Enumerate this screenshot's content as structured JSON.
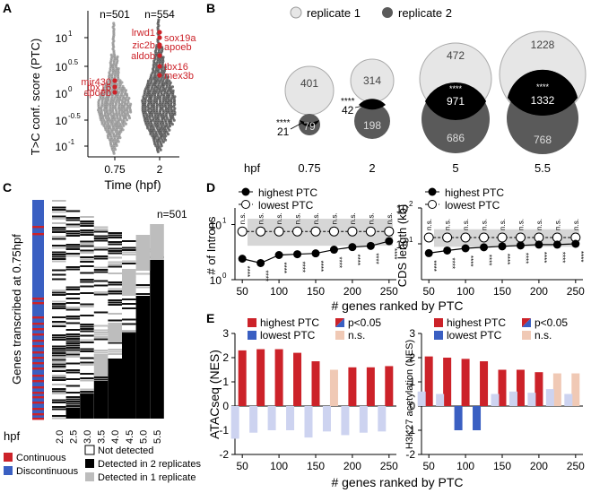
{
  "panels": {
    "A": {
      "letter": "A",
      "ylabel": "T>C conf. score (PTC)",
      "xlabel": "Time (hpf)",
      "yticks": [
        "10¹",
        "10°⋅⁵",
        "10⁰",
        "10⁻⁰⋅⁵",
        "10⁻¹"
      ],
      "ytick_labels": [
        "10",
        "10",
        "10",
        "10",
        "10"
      ],
      "ytick_exps": [
        "1",
        "0.5",
        "0",
        "-0.5",
        "-1"
      ],
      "xticks": [
        "0.75",
        "2"
      ],
      "counts": [
        "n=501",
        "n=554"
      ],
      "genes_left": [
        "mir430",
        "tbx16",
        "apoeb"
      ],
      "genes_right_a": [
        "lrwd1",
        "zic2b",
        "aldob"
      ],
      "genes_right_b": [
        "sox19a",
        "apoeb",
        "tbx16",
        "mex3b"
      ]
    },
    "B": {
      "letter": "B",
      "legend": [
        "replicate 1",
        "replicate 2"
      ],
      "row_label": "hpf",
      "timepoints": [
        "0.75",
        "2",
        "5",
        "5.5"
      ],
      "rep1_only": [
        "401",
        "314",
        "472",
        "1228"
      ],
      "overlap": [
        "21",
        "42",
        "971",
        "1332"
      ],
      "rep2_only": [
        "79",
        "198",
        "686",
        "768"
      ],
      "signif": "****"
    },
    "C": {
      "letter": "C",
      "ylabel": "Genes transcribed at 0.75hpf",
      "count": "n=501",
      "row_label": "hpf",
      "columns": [
        "2.0",
        "2.5",
        "3.0",
        "3.5",
        "4.0",
        "4.5",
        "5.0",
        "5.5"
      ],
      "legend_left": [
        "Continuous",
        "Discontinuous"
      ],
      "legend_right": [
        "Not detected",
        "Detected in 2 replicates",
        "Detected in 1 replicate"
      ]
    },
    "D": {
      "letter": "D",
      "legend": [
        "highest PTC",
        "lowest PTC"
      ],
      "ns": "n.s.",
      "stars": "****",
      "xlabel": "# genes ranked by PTC",
      "xticks": [
        "50",
        "100",
        "150",
        "200",
        "250"
      ],
      "left": {
        "ylabel": "# of Introns",
        "yticks": [
          "10",
          "10"
        ],
        "yexps": [
          "1",
          "0"
        ]
      },
      "right": {
        "ylabel": "CDS length (kb)",
        "yticks": [
          "10",
          "10"
        ],
        "yexps": [
          "2",
          "1"
        ]
      }
    },
    "E": {
      "letter": "E",
      "legend": [
        "highest PTC",
        "lowest PTC",
        "p<0.05",
        "n.s."
      ],
      "xlabel": "# genes ranked by PTC",
      "xticks": [
        "50",
        "100",
        "150",
        "200",
        "250"
      ],
      "yticks": [
        "3",
        "2",
        "1",
        "0",
        "-1",
        "-2"
      ],
      "left": {
        "ylabel": "ATACseq (NES)"
      },
      "right": {
        "ylabel": "H3K27 acetylation (NES)"
      }
    }
  },
  "colors": {
    "red": "#cc2229",
    "blue": "#3a5fc2",
    "pale_red": "#f0c9b5",
    "pale_blue": "#cdd3f0",
    "grey": "#c9c9c9",
    "dark": "#5a5a5a",
    "black": "#000000",
    "light": "#e6e6e6"
  },
  "chart_data": [
    {
      "type": "line",
      "panel": "D-left",
      "x": [
        50,
        75,
        100,
        125,
        150,
        175,
        200,
        225,
        250
      ],
      "series": [
        {
          "name": "highest PTC",
          "values": [
            2.4,
            2.0,
            2.8,
            2.9,
            3.0,
            3.5,
            3.9,
            4.1,
            5.0
          ]
        },
        {
          "name": "lowest PTC",
          "values": [
            7.5,
            7.5,
            7.5,
            7.5,
            7.5,
            7.5,
            7.5,
            7.5,
            7.5
          ]
        }
      ],
      "ylabel": "# of Introns",
      "yscale": "log",
      "ylim": [
        1,
        20
      ]
    },
    {
      "type": "line",
      "panel": "D-right",
      "x": [
        50,
        75,
        100,
        125,
        150,
        175,
        200,
        225,
        250
      ],
      "series": [
        {
          "name": "highest PTC",
          "values": [
            5.5,
            6.5,
            7.5,
            8.0,
            8.5,
            9.0,
            9.5,
            9.5,
            10.0
          ]
        },
        {
          "name": "lowest PTC",
          "values": [
            15,
            15,
            15,
            15,
            15,
            15,
            15,
            15,
            15
          ]
        }
      ],
      "ylabel": "CDS length (kb)",
      "yscale": "log",
      "ylim": [
        1,
        100
      ]
    },
    {
      "type": "bar",
      "panel": "E-left",
      "x": [
        50,
        75,
        100,
        125,
        150,
        175,
        200,
        225,
        250
      ],
      "series": [
        {
          "name": "highest PTC",
          "values": [
            2.3,
            2.35,
            2.35,
            2.2,
            1.85,
            1.5,
            1.6,
            1.6,
            1.65
          ],
          "significant": [
            true,
            true,
            true,
            true,
            true,
            false,
            true,
            true,
            true
          ]
        },
        {
          "name": "lowest PTC",
          "values": [
            -1.35,
            -1.1,
            -1.0,
            -1.0,
            -1.3,
            -1.05,
            -1.2,
            -1.1,
            -1.05
          ],
          "significant": [
            false,
            false,
            false,
            false,
            false,
            false,
            false,
            false,
            false
          ]
        }
      ],
      "ylabel": "ATACseq (NES)",
      "ylim": [
        -2,
        3
      ]
    },
    {
      "type": "bar",
      "panel": "E-right",
      "x": [
        50,
        75,
        100,
        125,
        150,
        175,
        200,
        225,
        250
      ],
      "series": [
        {
          "name": "highest PTC",
          "values": [
            2.05,
            2.0,
            1.95,
            1.85,
            1.5,
            1.5,
            1.4,
            1.35,
            1.35
          ],
          "significant": [
            true,
            true,
            true,
            true,
            true,
            true,
            true,
            false,
            false
          ]
        },
        {
          "name": "lowest PTC",
          "values": [
            0.6,
            0.5,
            -1.0,
            -1.0,
            0.5,
            0.6,
            0.55,
            0.7,
            0.5
          ],
          "significant": [
            false,
            false,
            true,
            true,
            false,
            false,
            false,
            false,
            false
          ]
        }
      ],
      "ylabel": "H3K27 acetylation (NES)",
      "ylim": [
        -2,
        3
      ]
    }
  ]
}
